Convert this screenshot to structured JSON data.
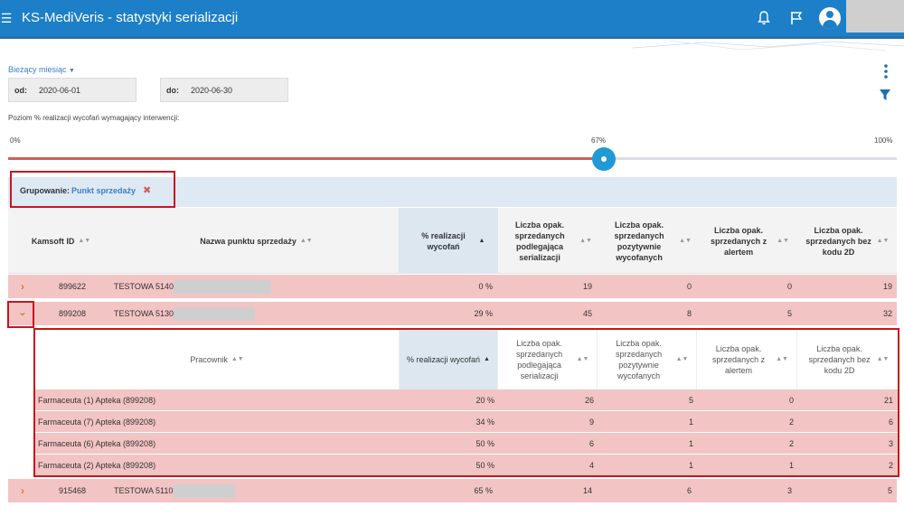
{
  "app": {
    "title": "KS-MediVeris - statystyki serializacji",
    "icons": [
      "menu-icon",
      "bell-icon",
      "flag-icon",
      "user-icon",
      "more-vertical-icon",
      "filter-icon",
      "close-icon",
      "chevron-right-icon",
      "chevron-down-icon",
      "sort-icon"
    ],
    "colors": {
      "topbar": "#1d7fc7",
      "row_alert": "#f3c4c4",
      "slider_fill": "#c9625a",
      "slider_thumb": "#1f9ad6",
      "highlight": "#c8161d",
      "link": "#3a7fc1"
    }
  },
  "filters": {
    "period_label": "Bieżący miesiąc",
    "from_label": "od:",
    "from_value": "2020-06-01",
    "to_label": "do:",
    "to_value": "2020-06-30"
  },
  "slider": {
    "label": "Poziom % realizacji wycofań wymagający interwencji:",
    "min_label": "0%",
    "value_label": "67%",
    "max_label": "100%",
    "value": 67
  },
  "grouping": {
    "label": "Grupowanie:",
    "value": "Punkt sprzedaży"
  },
  "table": {
    "headers": {
      "id": "Kamsoft ID",
      "name": "Nazwa punktu sprzedaży",
      "pct": "% realizacji wycofań",
      "serial": "Liczba opak. sprzedanych podlegająca serializacji",
      "positive": "Liczba opak. sprzedanych pozytywnie wycofanych",
      "alert": "Liczba opak. sprzedanych z alertem",
      "no2d": "Liczba opak. sprzedanych bez kodu 2D"
    },
    "rows": [
      {
        "id": "899622",
        "name": "TESTOWA 5140",
        "pct": "0 %",
        "serial": "19",
        "positive": "0",
        "alert": "0",
        "no2d": "19"
      },
      {
        "id": "899208",
        "name": "TESTOWA 5130",
        "pct": "29 %",
        "serial": "45",
        "positive": "8",
        "alert": "5",
        "no2d": "32"
      },
      {
        "id": "915468",
        "name": "TESTOWA 5110",
        "pct": "65 %",
        "serial": "14",
        "positive": "6",
        "alert": "3",
        "no2d": "5"
      }
    ]
  },
  "subtable": {
    "headers": {
      "worker": "Pracownik",
      "pct": "% realizacji wycofań",
      "serial": "Liczba opak. sprzedanych podlegająca serializacji",
      "positive": "Liczba opak. sprzedanych pozytywnie wycofanych",
      "alert": "Liczba opak. sprzedanych z alertem",
      "no2d": "Liczba opak. sprzedanych bez kodu 2D"
    },
    "rows": [
      {
        "worker": "Farmaceuta (1) Apteka (899208)",
        "pct": "20 %",
        "serial": "26",
        "positive": "5",
        "alert": "0",
        "no2d": "21"
      },
      {
        "worker": "Farmaceuta (7) Apteka (899208)",
        "pct": "34 %",
        "serial": "9",
        "positive": "1",
        "alert": "2",
        "no2d": "6"
      },
      {
        "worker": "Farmaceuta (6) Apteka (899208)",
        "pct": "50 %",
        "serial": "6",
        "positive": "1",
        "alert": "2",
        "no2d": "3"
      },
      {
        "worker": "Farmaceuta (2) Apteka (899208)",
        "pct": "50 %",
        "serial": "4",
        "positive": "1",
        "alert": "1",
        "no2d": "2"
      }
    ]
  }
}
